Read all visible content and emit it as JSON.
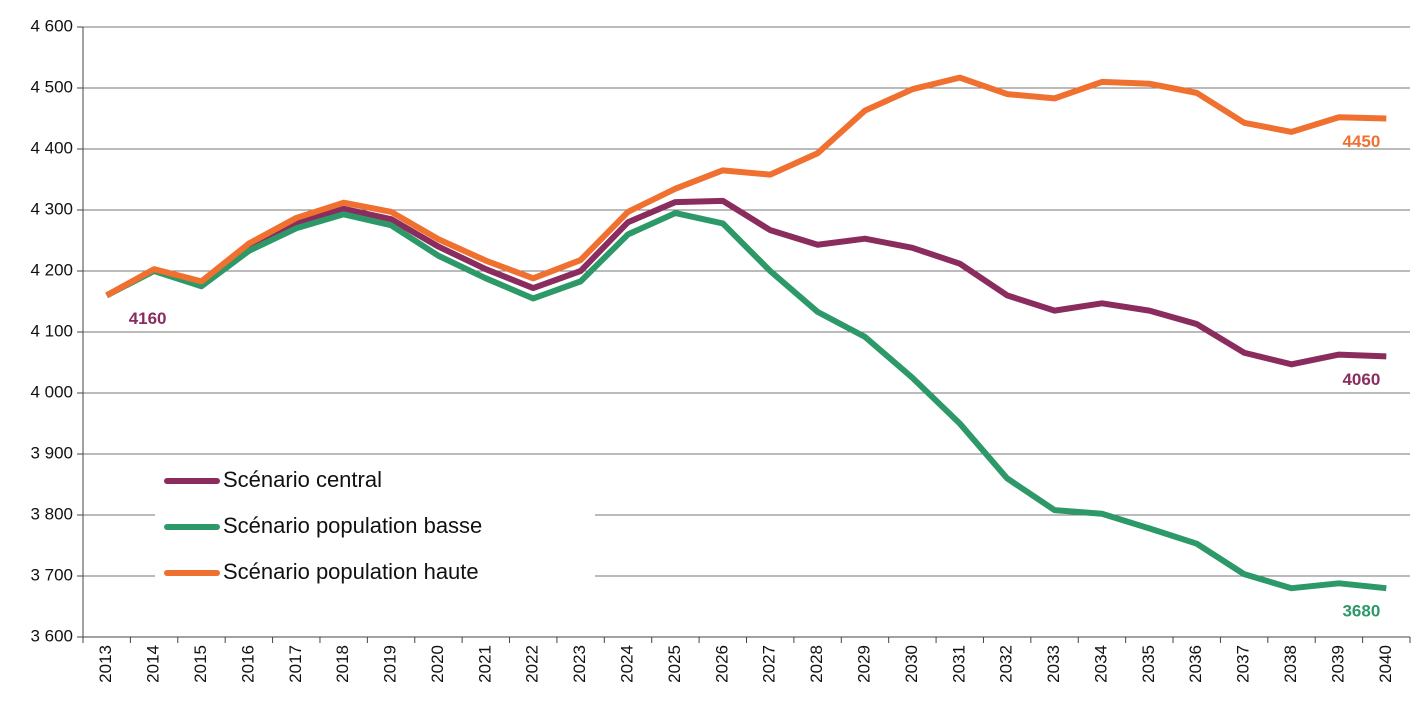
{
  "chart_data": {
    "type": "line",
    "categories": [
      "2013",
      "2014",
      "2015",
      "2016",
      "2017",
      "2018",
      "2019",
      "2020",
      "2021",
      "2022",
      "2023",
      "2024",
      "2025",
      "2026",
      "2027",
      "2028",
      "2029",
      "2030",
      "2031",
      "2032",
      "2033",
      "2034",
      "2035",
      "2036",
      "2037",
      "2038",
      "2039",
      "2040"
    ],
    "series": [
      {
        "name": "Scénario central",
        "color": "#8b2c5f",
        "values": [
          4160,
          4202,
          4180,
          4240,
          4278,
          4302,
          4285,
          4240,
          4203,
          4172,
          4200,
          4280,
          4313,
          4315,
          4267,
          4243,
          4253,
          4238,
          4212,
          4160,
          4135,
          4147,
          4135,
          4113,
          4066,
          4047,
          4063,
          4060
        ],
        "value_labels": [
          "4160",
          null,
          null,
          null,
          null,
          null,
          null,
          null,
          null,
          null,
          null,
          null,
          null,
          null,
          null,
          null,
          null,
          null,
          null,
          null,
          null,
          null,
          null,
          null,
          null,
          null,
          null,
          "4060"
        ]
      },
      {
        "name": "Scénario population basse",
        "color": "#2e9968",
        "values": [
          4160,
          4200,
          4175,
          4233,
          4270,
          4293,
          4275,
          4225,
          4188,
          4155,
          4183,
          4260,
          4295,
          4278,
          4200,
          4133,
          4092,
          4025,
          3950,
          3860,
          3808,
          3802,
          3778,
          3753,
          3703,
          3680,
          3688,
          3680
        ],
        "value_labels": [
          null,
          null,
          null,
          null,
          null,
          null,
          null,
          null,
          null,
          null,
          null,
          null,
          null,
          null,
          null,
          null,
          null,
          null,
          null,
          null,
          null,
          null,
          null,
          null,
          null,
          null,
          null,
          "3680"
        ]
      },
      {
        "name": "Scénario population haute",
        "color": "#f07030",
        "values": [
          4160,
          4203,
          4183,
          4245,
          4287,
          4312,
          4297,
          4252,
          4217,
          4188,
          4218,
          4297,
          4335,
          4365,
          4358,
          4393,
          4463,
          4498,
          4517,
          4490,
          4483,
          4510,
          4507,
          4492,
          4443,
          4428,
          4452,
          4450
        ],
        "value_labels": [
          null,
          null,
          null,
          null,
          null,
          null,
          null,
          null,
          null,
          null,
          null,
          null,
          null,
          null,
          null,
          null,
          null,
          null,
          null,
          null,
          null,
          null,
          null,
          null,
          null,
          null,
          null,
          "4450"
        ]
      }
    ],
    "ylim": [
      3600,
      4600
    ],
    "yticks": [
      {
        "value": 3600,
        "label": "3 600"
      },
      {
        "value": 3700,
        "label": "3 700"
      },
      {
        "value": 3800,
        "label": "3 800"
      },
      {
        "value": 3900,
        "label": "3 900"
      },
      {
        "value": 4000,
        "label": "4 000"
      },
      {
        "value": 4100,
        "label": "4 100"
      },
      {
        "value": 4200,
        "label": "4 200"
      },
      {
        "value": 4300,
        "label": "4 300"
      },
      {
        "value": 4400,
        "label": "4 400"
      },
      {
        "value": 4500,
        "label": "4 500"
      },
      {
        "value": 4600,
        "label": "4 600"
      }
    ],
    "grid": true,
    "legend": "lower left"
  }
}
